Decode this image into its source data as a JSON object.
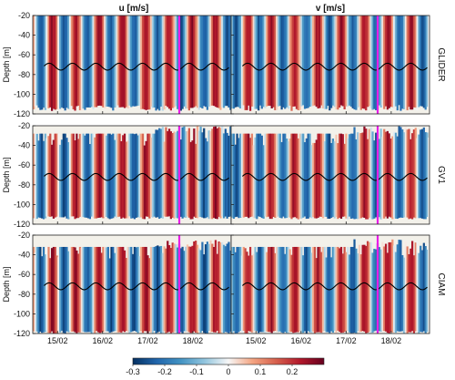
{
  "chart_data": {
    "type": "heatmap",
    "columns": [
      {
        "title": "u [m/s]"
      },
      {
        "title": "v [m/s]"
      }
    ],
    "rows": [
      {
        "label": "GLIDER"
      },
      {
        "label": "GV1"
      },
      {
        "label": "CIAM"
      }
    ],
    "ylabel": "Depth [m]",
    "ylim": [
      -120,
      -20
    ],
    "yticks": [
      -120,
      -100,
      -80,
      -60,
      -40,
      -20
    ],
    "xlim": [
      14.7,
      19.1
    ],
    "xticks": [
      {
        "value": 15.25,
        "label": "15/02"
      },
      {
        "value": 16.25,
        "label": "16/02"
      },
      {
        "value": 17.25,
        "label": "17/02"
      },
      {
        "value": 18.25,
        "label": "18/02"
      }
    ],
    "vertical_marker": {
      "x": 17.95,
      "color": "#e81ee8"
    },
    "tidal_line": {
      "mean_depth": -72,
      "amplitude": 3.5,
      "period_days": 0.517
    },
    "colorbar": {
      "min": -0.3,
      "max": 0.3,
      "ticks": [
        "-0.3",
        "-0.2",
        "-0.1",
        "0",
        "0.1",
        "0.2"
      ],
      "colors": [
        "#053061",
        "#2166ac",
        "#4393c3",
        "#92c5de",
        "#f7f7f7",
        "#f4a582",
        "#d6604d",
        "#b2182b",
        "#67001f"
      ]
    },
    "missing_color": "#f3f1ea",
    "velocity_field": {
      "period_days": 0.517,
      "u_amplitude": 0.25,
      "v_amplitude": 0.24,
      "data_top_depth": {
        "GLIDER": -20,
        "GV1": -28,
        "CIAM": -32
      },
      "data_bottom_depth": {
        "GLIDER": -117,
        "GV1": -115,
        "CIAM": -120
      }
    }
  }
}
